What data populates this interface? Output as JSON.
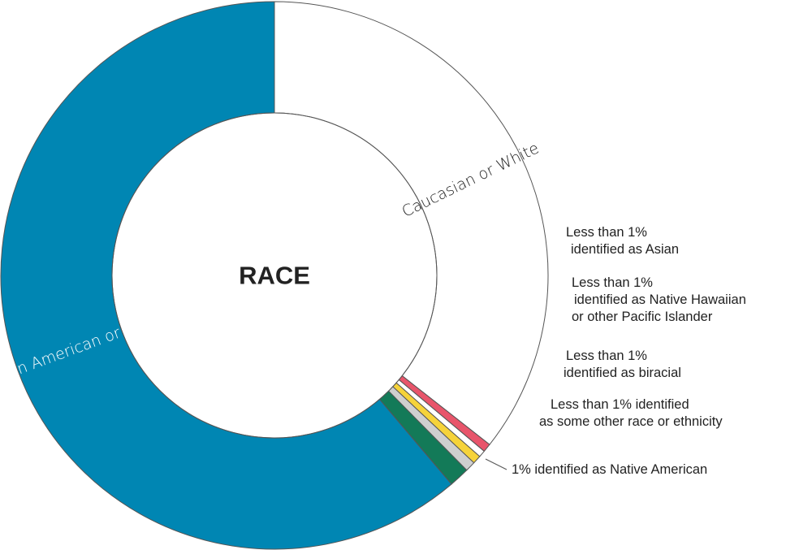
{
  "chart_data": {
    "type": "pie",
    "subtype": "donut",
    "title": "RACE",
    "slices": [
      {
        "name": "Caucasian or White",
        "value": 35.6,
        "color": "#ffffff",
        "label": "Caucasian or White"
      },
      {
        "name": "Asian",
        "value": 0.5,
        "color": "#e8556b",
        "label": ""
      },
      {
        "name": "Native Hawaiian or other Pacific Islander",
        "value": 0.4,
        "color": "#ffffff",
        "label": ""
      },
      {
        "name": "Biracial",
        "value": 0.5,
        "color": "#f6d33a",
        "label": ""
      },
      {
        "name": "Some other race or ethnicity",
        "value": 0.6,
        "color": "#cfcfcf",
        "label": ""
      },
      {
        "name": "Native American",
        "value": 1.2,
        "color": "#137a58",
        "label": ""
      },
      {
        "name": "African American or Black",
        "value": 61.2,
        "color": "#0086b3",
        "label": "African American or Black"
      }
    ],
    "legend": "none"
  },
  "annotations": [
    {
      "id": "asian",
      "lines": [
        "Less than 1%",
        "identified as Asian"
      ]
    },
    {
      "id": "hawaiian",
      "lines": [
        "Less than 1%",
        "identified as Native Hawaiian",
        "or other Pacific Islander"
      ]
    },
    {
      "id": "biracial",
      "lines": [
        "Less than 1%",
        "identified as biracial"
      ]
    },
    {
      "id": "other",
      "lines": [
        "Less than 1% identified",
        "as some other race or ethnicity"
      ]
    },
    {
      "id": "native-american",
      "lines": [
        "1% identified as Native American"
      ]
    }
  ],
  "colors": {
    "ring_outline": "#555555",
    "annotation_text": "#222222"
  }
}
